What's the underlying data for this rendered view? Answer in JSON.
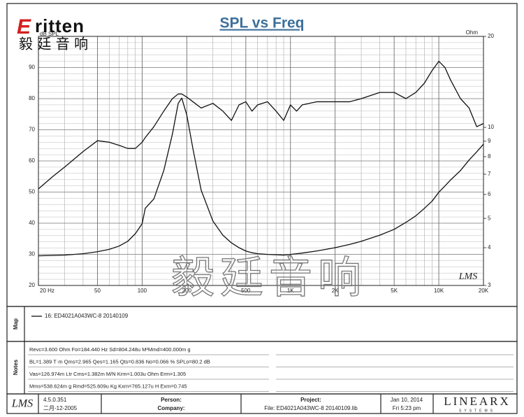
{
  "logo": {
    "initial": "E",
    "brand": "ritten",
    "chinese": "毅 廷 音 响"
  },
  "watermark": "毅廷音响",
  "chart_data": {
    "type": "line",
    "title": "SPL vs Freq",
    "y_label": "dB SPL",
    "y2_label": "Ohm",
    "annotation": "LMS",
    "xscale": "log",
    "y2scale": "log",
    "grid": true,
    "x": [
      20,
      25,
      30,
      40,
      50,
      60,
      70,
      80,
      90,
      100,
      105,
      120,
      140,
      160,
      175,
      185,
      200,
      220,
      250,
      300,
      350,
      400,
      450,
      500,
      550,
      600,
      700,
      800,
      900,
      1000,
      1100,
      1200,
      1500,
      2000,
      2500,
      3000,
      4000,
      5000,
      6000,
      7000,
      8000,
      9000,
      10000,
      11000,
      12000,
      14000,
      16000,
      18000,
      20000
    ],
    "series": [
      {
        "color": "#111111",
        "values": [
          51,
          55,
          58,
          63,
          66.5,
          66,
          65,
          64,
          64,
          66,
          67.5,
          71,
          76,
          80,
          81.5,
          81.5,
          80.5,
          79,
          77,
          78.5,
          76,
          73,
          78,
          79,
          76,
          78,
          79,
          76,
          73,
          78,
          76,
          78,
          79,
          79,
          79,
          80,
          82,
          82,
          80,
          82,
          85,
          89,
          92,
          90,
          86,
          80,
          77,
          71,
          72
        ]
      },
      {
        "color": "#111111",
        "axis": "y2",
        "values": [
          3.76,
          3.77,
          3.78,
          3.82,
          3.88,
          3.95,
          4.05,
          4.2,
          4.45,
          4.8,
          5.4,
          5.8,
          7.2,
          9.5,
          12,
          12.5,
          11,
          8.5,
          6.2,
          4.9,
          4.4,
          4.15,
          4.0,
          3.9,
          3.85,
          3.82,
          3.8,
          3.79,
          3.78,
          3.8,
          3.82,
          3.84,
          3.9,
          4.0,
          4.1,
          4.2,
          4.4,
          4.6,
          4.85,
          5.1,
          5.4,
          5.7,
          6.1,
          6.4,
          6.7,
          7.2,
          7.8,
          8.3,
          8.8
        ]
      }
    ],
    "xlim": [
      20,
      20000
    ],
    "xticks": [
      {
        "value": 20,
        "label": "20 Hz"
      },
      50,
      100,
      200,
      500,
      {
        "value": 1000,
        "label": "1K"
      },
      {
        "value": 2000,
        "label": "2K"
      },
      {
        "value": 5000,
        "label": "5K"
      },
      {
        "value": 10000,
        "label": "10K"
      },
      {
        "value": 20000,
        "label": "20K"
      }
    ],
    "ylim": [
      20,
      100
    ],
    "yticks": [
      20,
      30,
      40,
      50,
      60,
      70,
      80,
      90
    ],
    "y2lim": [
      3,
      20
    ],
    "y2ticks": [
      3,
      4,
      5,
      6,
      7,
      8,
      9,
      10,
      20
    ]
  },
  "map": {
    "label": "Map",
    "legend": "16: ED4021A043WC-8   20140109"
  },
  "notes": {
    "label": "Notes",
    "lines": [
      "Revc=3.600 Ohm  Fo=184.440 Hz  Sd=804.248u M²Mmd=400.000m g",
      "BL=1.389 T·m  Qms=2.965  Qes=1.165  Qts=0.836  No=0.066 %  SPLo=80.2 dB",
      "Vas=126.974m Ltr  Cms=1.382m M/N  Krm=1.003u Ohm  Erm=1.305",
      "Mms=538.624m g  Rmd=525.609u Kg  Kxm=765.127u H  Exm=0.745"
    ]
  },
  "footer": {
    "logo_left": "LMS",
    "version": "4.5.0.351",
    "build_date": "二月-12-2005",
    "person_label": "Person:",
    "company_label": "Company:",
    "project_label": "Project:",
    "file": "File: ED4021A043WC-8  20140109.lib",
    "date": "Jan 10, 2014",
    "time": "Fri   5:23 pm",
    "logo_right": "LINEARX",
    "logo_right_sub": "SYSTEMS"
  }
}
